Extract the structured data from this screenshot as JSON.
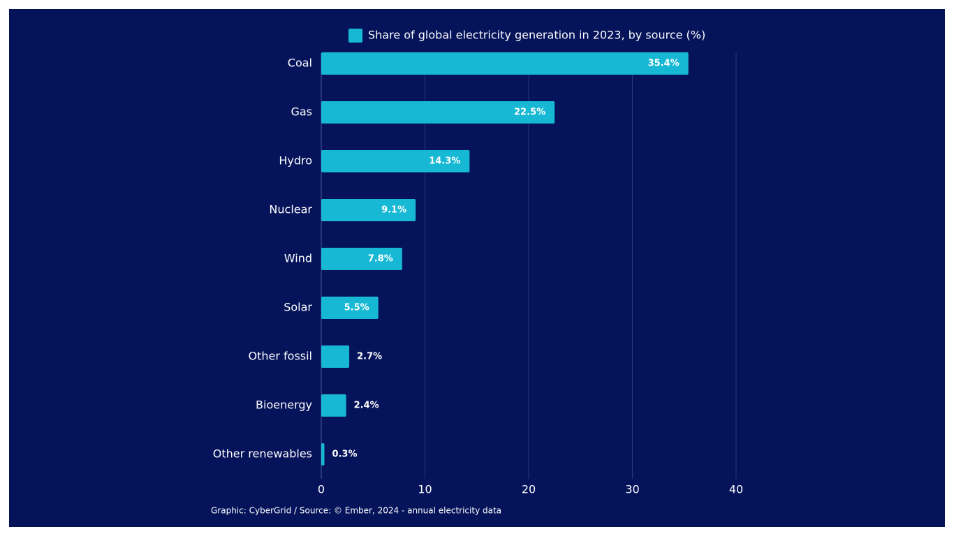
{
  "chart_data": {
    "type": "bar",
    "categories": [
      "Coal",
      "Gas",
      "Hydro",
      "Nuclear",
      "Wind",
      "Solar",
      "Other fossil",
      "Bioenergy",
      "Other renewables"
    ],
    "series": [
      {
        "name": "Share of global electricity generation in 2023, by source (%)",
        "color": "#17b8d4",
        "values": [
          35.4,
          22.5,
          14.3,
          9.1,
          7.8,
          5.5,
          2.7,
          2.4,
          0.3
        ],
        "value_labels": [
          "35.4%",
          "22.5%",
          "14.3%",
          "9.1%",
          "7.8%",
          "5.5%",
          "2.7%",
          "2.4%",
          "0.3%"
        ]
      }
    ],
    "xlim": [
      0,
      40
    ],
    "xticks": [
      0,
      10,
      20,
      30,
      40
    ],
    "grid": true,
    "legend": "top",
    "source": "Graphic: CyberGrid / Source: © Ember, 2024 - annual electricity data"
  }
}
